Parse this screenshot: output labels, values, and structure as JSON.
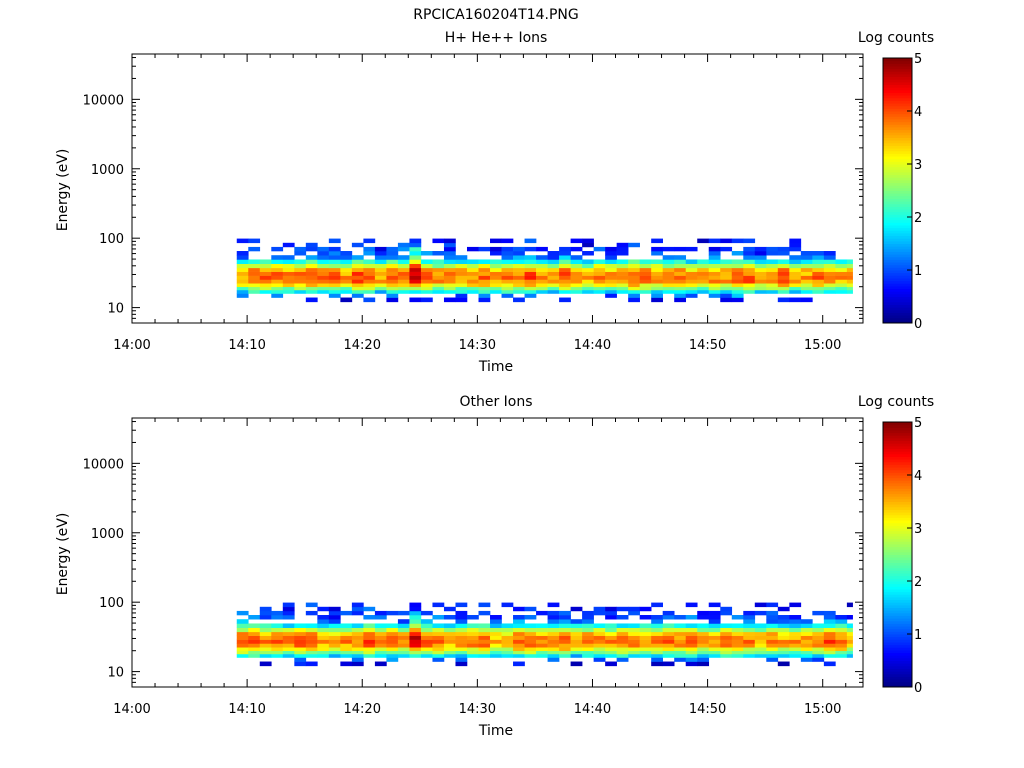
{
  "figure_title": "RPCICA160204T14.PNG",
  "chart_data": [
    {
      "type": "heatmap",
      "title": "H+ He++ Ions",
      "xlabel": "Time",
      "ylabel": "Energy (eV)",
      "x_ticks": [
        "14:00",
        "14:10",
        "14:20",
        "14:30",
        "14:40",
        "14:50",
        "15:00"
      ],
      "x_tick_minutes": [
        0,
        10,
        20,
        30,
        40,
        50,
        60
      ],
      "xlim_minutes": [
        0,
        63.5
      ],
      "y_scale": "log",
      "y_ticks": [
        "10",
        "100",
        "1000",
        "10000"
      ],
      "y_tick_values": [
        10,
        100,
        1000,
        10000
      ],
      "ylim": [
        6,
        45000
      ],
      "data_time_range_minutes": [
        9.1,
        62.6
      ],
      "colorbar": {
        "label": "Log counts",
        "ticks": [
          "0",
          "1",
          "2",
          "3",
          "4",
          "5"
        ],
        "tick_values": [
          0,
          1,
          2,
          3,
          4,
          5
        ],
        "range": [
          0,
          5
        ],
        "colormap": "jet"
      },
      "profile": {
        "energy_bins_eV": [
          13,
          15,
          17,
          19,
          21,
          24,
          27,
          31,
          35,
          40,
          46,
          53,
          61,
          70,
          80,
          92
        ],
        "typical_log_counts": [
          0.6,
          1.2,
          1.9,
          2.6,
          3.2,
          3.7,
          3.8,
          3.7,
          3.5,
          2.8,
          2.0,
          1.3,
          1.0,
          0.9,
          0.8,
          0.7
        ],
        "peak_energy_eV": 27,
        "peak_log_counts": 4.2
      }
    },
    {
      "type": "heatmap",
      "title": "Other Ions",
      "xlabel": "Time",
      "ylabel": "Energy (eV)",
      "x_ticks": [
        "14:00",
        "14:10",
        "14:20",
        "14:30",
        "14:40",
        "14:50",
        "15:00"
      ],
      "x_tick_minutes": [
        0,
        10,
        20,
        30,
        40,
        50,
        60
      ],
      "xlim_minutes": [
        0,
        63.5
      ],
      "y_scale": "log",
      "y_ticks": [
        "10",
        "100",
        "1000",
        "10000"
      ],
      "y_tick_values": [
        10,
        100,
        1000,
        10000
      ],
      "ylim": [
        6,
        45000
      ],
      "data_time_range_minutes": [
        9.1,
        62.6
      ],
      "colorbar": {
        "label": "Log counts",
        "ticks": [
          "0",
          "1",
          "2",
          "3",
          "4",
          "5"
        ],
        "tick_values": [
          0,
          1,
          2,
          3,
          4,
          5
        ],
        "range": [
          0,
          5
        ],
        "colormap": "jet"
      },
      "profile": {
        "energy_bins_eV": [
          13,
          15,
          17,
          19,
          21,
          24,
          27,
          31,
          35,
          40,
          46,
          53,
          61,
          70,
          80,
          92
        ],
        "typical_log_counts": [
          0.5,
          1.1,
          1.8,
          2.5,
          3.1,
          3.6,
          3.8,
          3.7,
          3.4,
          2.7,
          1.9,
          1.2,
          1.0,
          0.9,
          0.8,
          0.7
        ],
        "peak_energy_eV": 29,
        "peak_log_counts": 4.1
      }
    }
  ]
}
